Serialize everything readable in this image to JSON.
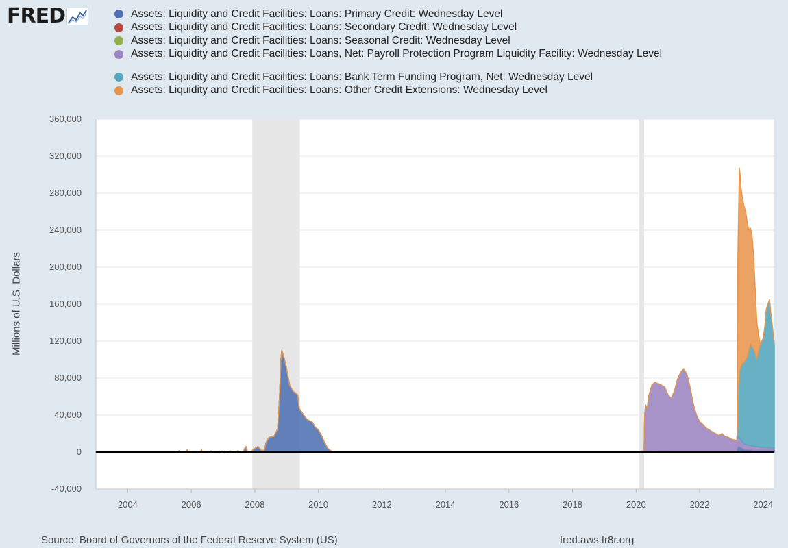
{
  "logo": {
    "text": "FRED",
    "icon": "line-chart-icon"
  },
  "footer": {
    "source": "Source: Board of Governors of the Federal Reserve System (US)",
    "site": "fred.aws.fr8r.org"
  },
  "chart_data": {
    "type": "area",
    "stacked": true,
    "ylabel": "Millions of U.S. Dollars",
    "ylim": [
      -40000,
      360000
    ],
    "xlim": [
      2003,
      2024.35
    ],
    "y_ticks": [
      -40000,
      0,
      40000,
      80000,
      120000,
      160000,
      200000,
      240000,
      280000,
      320000,
      360000
    ],
    "y_tick_labels": [
      "-40,000",
      "0",
      "40,000",
      "80,000",
      "120,000",
      "160,000",
      "200,000",
      "240,000",
      "280,000",
      "320,000",
      "360,000"
    ],
    "x_ticks": [
      2004,
      2006,
      2008,
      2010,
      2012,
      2014,
      2016,
      2018,
      2020,
      2022,
      2024
    ],
    "x_tick_labels": [
      "2004",
      "2006",
      "2008",
      "2010",
      "2012",
      "2014",
      "2016",
      "2018",
      "2020",
      "2022",
      "2024"
    ],
    "grid": "horizontal",
    "legend_position": "top",
    "recessions": [
      [
        2007.92,
        2009.42
      ],
      [
        2020.08,
        2020.25
      ]
    ],
    "series": [
      {
        "name": "Assets: Liquidity and Credit Facilities: Loans: Primary Credit: Wednesday Level",
        "color": "#4e71b3",
        "points": [
          [
            2003,
            0
          ],
          [
            2005.6,
            0
          ],
          [
            2005.62,
            1500
          ],
          [
            2005.64,
            0
          ],
          [
            2005.85,
            0
          ],
          [
            2005.87,
            2200
          ],
          [
            2005.89,
            0
          ],
          [
            2006.3,
            0
          ],
          [
            2006.32,
            2500
          ],
          [
            2006.34,
            0
          ],
          [
            2006.6,
            0
          ],
          [
            2006.62,
            1200
          ],
          [
            2006.64,
            0
          ],
          [
            2006.95,
            0
          ],
          [
            2006.97,
            1000
          ],
          [
            2006.99,
            0
          ],
          [
            2007.2,
            0
          ],
          [
            2007.22,
            1300
          ],
          [
            2007.24,
            0
          ],
          [
            2007.45,
            0
          ],
          [
            2007.47,
            1500
          ],
          [
            2007.49,
            0
          ],
          [
            2007.63,
            0
          ],
          [
            2007.67,
            3000
          ],
          [
            2007.72,
            6000
          ],
          [
            2007.76,
            1000
          ],
          [
            2007.9,
            500
          ],
          [
            2007.95,
            3000
          ],
          [
            2008.1,
            6000
          ],
          [
            2008.2,
            2000
          ],
          [
            2008.3,
            2000
          ],
          [
            2008.35,
            10000
          ],
          [
            2008.45,
            16000
          ],
          [
            2008.6,
            17000
          ],
          [
            2008.72,
            25000
          ],
          [
            2008.78,
            60000
          ],
          [
            2008.82,
            100000
          ],
          [
            2008.85,
            110000
          ],
          [
            2008.9,
            104000
          ],
          [
            2008.95,
            98000
          ],
          [
            2009.0,
            90000
          ],
          [
            2009.1,
            72000
          ],
          [
            2009.2,
            66000
          ],
          [
            2009.35,
            62000
          ],
          [
            2009.4,
            47000
          ],
          [
            2009.5,
            42000
          ],
          [
            2009.6,
            37000
          ],
          [
            2009.7,
            34000
          ],
          [
            2009.8,
            33000
          ],
          [
            2009.9,
            27000
          ],
          [
            2010.0,
            24000
          ],
          [
            2010.1,
            18000
          ],
          [
            2010.2,
            10000
          ],
          [
            2010.3,
            4000
          ],
          [
            2010.45,
            0
          ],
          [
            2020.12,
            0
          ],
          [
            2020.14,
            500
          ],
          [
            2020.2,
            1200
          ],
          [
            2020.4,
            900
          ],
          [
            2020.6,
            600
          ],
          [
            2020.8,
            400
          ],
          [
            2021.0,
            300
          ],
          [
            2021.3,
            200
          ],
          [
            2021.6,
            100
          ],
          [
            2022.0,
            0
          ],
          [
            2023.1,
            0
          ],
          [
            2023.16,
            800
          ],
          [
            2023.22,
            6500
          ],
          [
            2023.3,
            5000
          ],
          [
            2023.4,
            3000
          ],
          [
            2023.55,
            2500
          ],
          [
            2023.7,
            2000
          ],
          [
            2023.9,
            2000
          ],
          [
            2024.2,
            2000
          ],
          [
            2024.35,
            2000
          ]
        ]
      },
      {
        "name": "Assets: Liquidity and Credit Facilities: Loans: Secondary Credit: Wednesday Level",
        "color": "#b84840",
        "points": [
          [
            2003,
            0
          ],
          [
            2024.35,
            0
          ]
        ]
      },
      {
        "name": "Assets: Liquidity and Credit Facilities: Loans: Seasonal Credit: Wednesday Level",
        "color": "#91b04a",
        "points": [
          [
            2003,
            0
          ],
          [
            2024.35,
            0
          ]
        ]
      },
      {
        "name": "Assets: Liquidity and Credit Facilities: Loans, Net: Payroll Protection Program Liquidity Facility: Wednesday Level",
        "color": "#9c84c0",
        "points": [
          [
            2003,
            0
          ],
          [
            2020.25,
            0
          ],
          [
            2020.27,
            40000
          ],
          [
            2020.3,
            50000
          ],
          [
            2020.35,
            46000
          ],
          [
            2020.4,
            60000
          ],
          [
            2020.5,
            72000
          ],
          [
            2020.6,
            75000
          ],
          [
            2020.65,
            74000
          ],
          [
            2020.75,
            73000
          ],
          [
            2020.9,
            70000
          ],
          [
            2021.0,
            62000
          ],
          [
            2021.1,
            58000
          ],
          [
            2021.2,
            65000
          ],
          [
            2021.3,
            78000
          ],
          [
            2021.4,
            86000
          ],
          [
            2021.5,
            90000
          ],
          [
            2021.6,
            84000
          ],
          [
            2021.7,
            70000
          ],
          [
            2021.8,
            52000
          ],
          [
            2021.9,
            40000
          ],
          [
            2022.0,
            33000
          ],
          [
            2022.1,
            30000
          ],
          [
            2022.2,
            26000
          ],
          [
            2022.4,
            22000
          ],
          [
            2022.5,
            20000
          ],
          [
            2022.6,
            18000
          ],
          [
            2022.7,
            20000
          ],
          [
            2022.8,
            17000
          ],
          [
            2022.9,
            16000
          ],
          [
            2023.0,
            14000
          ],
          [
            2023.1,
            13000
          ],
          [
            2023.2,
            11000
          ],
          [
            2023.3,
            8000
          ],
          [
            2023.4,
            6000
          ],
          [
            2023.55,
            5000
          ],
          [
            2023.7,
            4500
          ],
          [
            2023.9,
            3500
          ],
          [
            2024.1,
            3000
          ],
          [
            2024.35,
            2500
          ]
        ]
      },
      {
        "name": "Assets: Liquidity and Credit Facilities: Loans: Bank Term Funding Program, Net: Wednesday Level",
        "color": "#53a6bc",
        "points": [
          [
            2003,
            0
          ],
          [
            2023.17,
            0
          ],
          [
            2023.19,
            12000
          ],
          [
            2023.22,
            55000
          ],
          [
            2023.27,
            75000
          ],
          [
            2023.35,
            85000
          ],
          [
            2023.4,
            88000
          ],
          [
            2023.5,
            95000
          ],
          [
            2023.6,
            110000
          ],
          [
            2023.7,
            105000
          ],
          [
            2023.8,
            95000
          ],
          [
            2023.9,
            110000
          ],
          [
            2024.0,
            118000
          ],
          [
            2024.05,
            130000
          ],
          [
            2024.1,
            150000
          ],
          [
            2024.2,
            160000
          ],
          [
            2024.25,
            142000
          ],
          [
            2024.3,
            128000
          ],
          [
            2024.35,
            113000
          ]
        ]
      },
      {
        "name": "Assets: Liquidity and Credit Facilities: Loans: Other Credit Extensions: Wednesday Level",
        "color": "#e8954c",
        "points": [
          [
            2003,
            0
          ],
          [
            2023.19,
            0
          ],
          [
            2023.2,
            165000
          ],
          [
            2023.22,
            175000
          ],
          [
            2023.25,
            225000
          ],
          [
            2023.3,
            195000
          ],
          [
            2023.35,
            178000
          ],
          [
            2023.45,
            160000
          ],
          [
            2023.55,
            130000
          ],
          [
            2023.65,
            120000
          ],
          [
            2023.7,
            100000
          ],
          [
            2023.75,
            70000
          ],
          [
            2023.8,
            40000
          ],
          [
            2023.85,
            20000
          ],
          [
            2023.9,
            3000
          ],
          [
            2023.93,
            0
          ],
          [
            2024.35,
            0
          ]
        ]
      }
    ]
  }
}
